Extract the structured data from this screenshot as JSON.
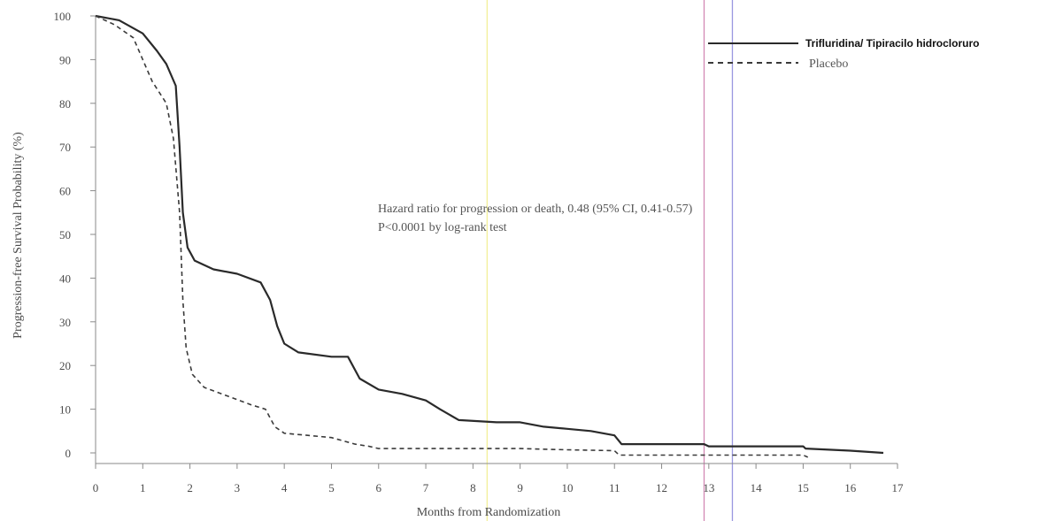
{
  "chart_data": {
    "type": "line",
    "title": "",
    "xlabel": "Months from Randomization",
    "ylabel": "Progression-free Survival Probability (%)",
    "xlim": [
      0,
      17
    ],
    "ylim": [
      0,
      100
    ],
    "x_ticks": [
      "0",
      "1",
      "2",
      "3",
      "4",
      "5",
      "6",
      "7",
      "8",
      "9",
      "10",
      "11",
      "12",
      "13",
      "14",
      "15",
      "16",
      "17"
    ],
    "y_ticks": [
      "0",
      "10",
      "20",
      "30",
      "40",
      "50",
      "60",
      "70",
      "80",
      "90",
      "100"
    ],
    "grid": false,
    "legend_position": "top-right",
    "annotations": [
      "Hazard ratio for progression or death, 0.48 (95% CI, 0.41-0.57)",
      "P<0.0001 by log-rank test"
    ],
    "reference_lines_x": [
      {
        "x": 8.3,
        "color": "#f3ef9a"
      },
      {
        "x": 12.9,
        "color": "#d38ab5"
      },
      {
        "x": 13.5,
        "color": "#9a98e0"
      }
    ],
    "series": [
      {
        "name": "Trifluridina/ Tipiracilo hidrocloruro",
        "style": "solid",
        "color": "#2a2a2a",
        "points": [
          [
            0,
            100
          ],
          [
            0.5,
            99
          ],
          [
            1,
            96
          ],
          [
            1.3,
            92
          ],
          [
            1.5,
            89
          ],
          [
            1.7,
            84
          ],
          [
            1.78,
            70
          ],
          [
            1.85,
            55
          ],
          [
            1.95,
            47
          ],
          [
            2.1,
            44
          ],
          [
            2.5,
            42
          ],
          [
            3,
            41
          ],
          [
            3.5,
            39
          ],
          [
            3.7,
            35
          ],
          [
            3.85,
            29
          ],
          [
            4,
            25
          ],
          [
            4.3,
            23
          ],
          [
            5,
            22
          ],
          [
            5.35,
            22
          ],
          [
            5.6,
            17
          ],
          [
            6,
            14.5
          ],
          [
            6.5,
            13.5
          ],
          [
            7,
            12
          ],
          [
            7.3,
            10
          ],
          [
            7.7,
            7.5
          ],
          [
            8.5,
            7
          ],
          [
            9,
            7
          ],
          [
            9.5,
            6
          ],
          [
            10,
            5.5
          ],
          [
            10.5,
            5
          ],
          [
            11,
            4
          ],
          [
            11.15,
            2
          ],
          [
            12,
            2
          ],
          [
            12.9,
            2
          ],
          [
            13,
            1.5
          ],
          [
            14,
            1.5
          ],
          [
            15,
            1.5
          ],
          [
            15.05,
            1
          ],
          [
            16,
            0.5
          ],
          [
            16.7,
            0
          ]
        ]
      },
      {
        "name": "Placebo",
        "style": "dashed",
        "color": "#3a3a3a",
        "points": [
          [
            0,
            100
          ],
          [
            0.4,
            98
          ],
          [
            0.8,
            95
          ],
          [
            1,
            90
          ],
          [
            1.2,
            85
          ],
          [
            1.5,
            80
          ],
          [
            1.65,
            72
          ],
          [
            1.78,
            55
          ],
          [
            1.85,
            35
          ],
          [
            1.92,
            24
          ],
          [
            2.05,
            18
          ],
          [
            2.3,
            15
          ],
          [
            2.8,
            13
          ],
          [
            3.3,
            11
          ],
          [
            3.6,
            10
          ],
          [
            3.8,
            6
          ],
          [
            4,
            4.5
          ],
          [
            4.5,
            4
          ],
          [
            5,
            3.5
          ],
          [
            5.5,
            2
          ],
          [
            5.8,
            1.5
          ],
          [
            6,
            1
          ],
          [
            7,
            1
          ],
          [
            8,
            1
          ],
          [
            9,
            1
          ],
          [
            10,
            0.7
          ],
          [
            11,
            0.5
          ],
          [
            11.1,
            -0.5
          ],
          [
            12,
            -0.5
          ],
          [
            15,
            -0.5
          ],
          [
            15.1,
            -1
          ]
        ]
      }
    ]
  }
}
